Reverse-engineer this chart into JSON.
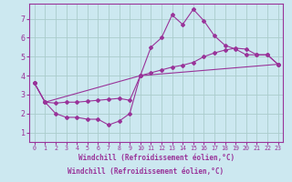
{
  "xlabel": "Windchill (Refroidissement éolien,°C)",
  "background_color": "#cce8f0",
  "grid_color": "#aacccc",
  "line_color": "#993399",
  "tick_color": "#993399",
  "bottom_bar_color": "#9966aa",
  "xlim_min": -0.5,
  "xlim_max": 23.5,
  "ylim_min": 0.5,
  "ylim_max": 7.8,
  "xticks": [
    0,
    1,
    2,
    3,
    4,
    5,
    6,
    7,
    8,
    9,
    10,
    11,
    12,
    13,
    14,
    15,
    16,
    17,
    18,
    19,
    20,
    21,
    22,
    23
  ],
  "yticks": [
    1,
    2,
    3,
    4,
    5,
    6,
    7
  ],
  "line1_x": [
    0,
    1,
    2,
    3,
    4,
    5,
    6,
    7,
    8,
    9,
    10,
    11,
    12,
    13,
    14,
    15,
    16,
    17,
    18,
    19,
    20,
    21,
    22,
    23
  ],
  "line1_y": [
    3.6,
    2.6,
    2.0,
    1.8,
    1.8,
    1.7,
    1.7,
    1.4,
    1.6,
    2.0,
    4.0,
    5.5,
    6.0,
    7.2,
    6.7,
    7.5,
    6.9,
    6.1,
    5.6,
    5.4,
    5.1,
    5.1,
    5.1,
    4.6
  ],
  "line2_x": [
    0,
    1,
    2,
    3,
    4,
    5,
    6,
    7,
    8,
    9,
    10,
    11,
    12,
    13,
    14,
    15,
    16,
    17,
    18,
    19,
    20,
    21,
    22,
    23
  ],
  "line2_y": [
    3.6,
    2.6,
    2.55,
    2.6,
    2.6,
    2.65,
    2.7,
    2.75,
    2.8,
    2.7,
    4.0,
    4.15,
    4.3,
    4.45,
    4.55,
    4.7,
    5.0,
    5.2,
    5.35,
    5.45,
    5.4,
    5.1,
    5.1,
    4.6
  ],
  "line3_x": [
    0,
    1,
    10,
    23
  ],
  "line3_y": [
    3.6,
    2.6,
    4.0,
    4.6
  ]
}
